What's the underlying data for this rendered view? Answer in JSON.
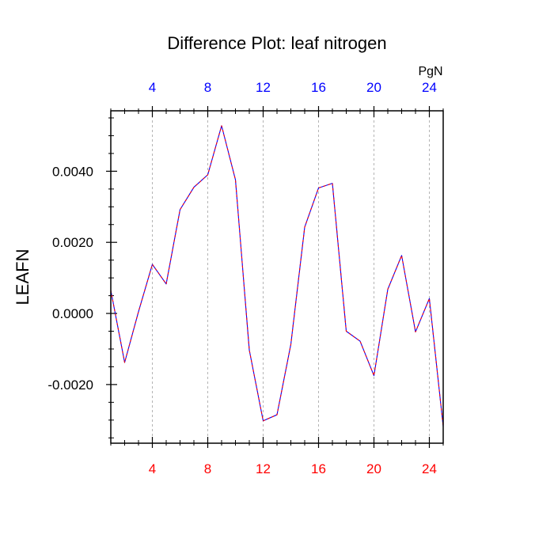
{
  "chart_data": {
    "type": "line",
    "title": "Difference Plot: leaf nitrogen",
    "ylabel": "LEAFN",
    "xlabel": "",
    "units_label": "PgN",
    "x": [
      1,
      2,
      3,
      4,
      5,
      6,
      7,
      8,
      9,
      10,
      11,
      12,
      13,
      14,
      15,
      16,
      17,
      18,
      19,
      20,
      21,
      22,
      23,
      24,
      25
    ],
    "series": [
      {
        "values": [
          0.00065,
          -0.00138,
          5e-05,
          0.00138,
          0.00083,
          0.00292,
          0.00355,
          0.0039,
          0.00528,
          0.00376,
          -0.00103,
          -0.00302,
          -0.00285,
          -0.00087,
          0.00243,
          0.00353,
          0.00366,
          -0.0005,
          -0.00078,
          -0.00175,
          0.00068,
          0.00163,
          -0.00052,
          0.00042,
          -0.00318
        ]
      }
    ],
    "xlim": [
      1,
      25
    ],
    "ylim": [
      -0.00365,
      0.0057
    ],
    "x_ticks": [
      "4",
      "8",
      "12",
      "16",
      "20",
      "24"
    ],
    "y_ticks": [
      "0.0040",
      "0.0020",
      "0.0000",
      "-0.0020"
    ],
    "x_grid": true,
    "y_grid": false,
    "bottom_axis_color": "#ff0000",
    "top_axis_color": "#0000ff",
    "line_color": "#0000ff",
    "line_dash_color": "#ff0000"
  }
}
